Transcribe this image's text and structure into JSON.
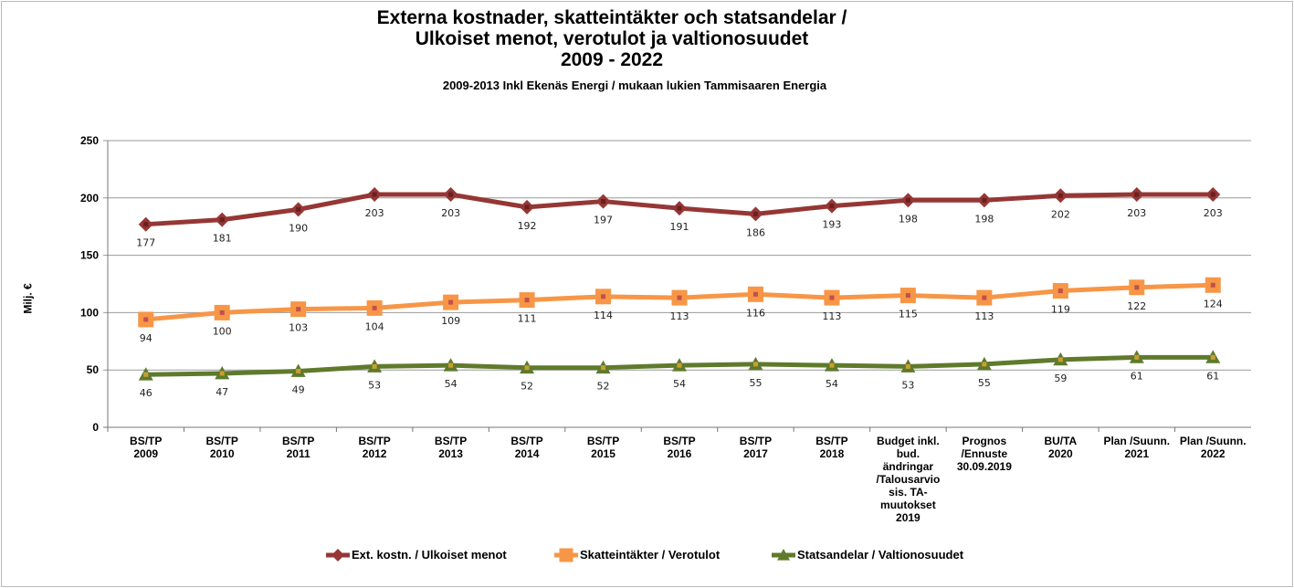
{
  "chart_data": {
    "type": "line",
    "title": "Externa kostnader, skatteintäkter och statsandelar /\nUlkoiset menot, verotulot ja valtionosuudet\n2009 - 2022",
    "subtitle": "2009-2013  Inkl Ekenäs Energi / mukaan lukien Tammisaaren Energia",
    "y_label": "Milj. €",
    "categories": [
      "BS/TP\n2009",
      "BS/TP\n2010",
      "BS/TP\n2011",
      "BS/TP\n2012",
      "BS/TP\n2013",
      "BS/TP\n2014",
      "BS/TP\n2015",
      "BS/TP\n2016",
      "BS/TP\n2017",
      "BS/TP\n2018",
      "Budget inkl.\nbud.\nändringar\n/Talousarvio\nsis. TA-\nmuutokset\n2019",
      "Prognos\n/Ennuste\n30.09.2019",
      "BU/TA\n2020",
      "Plan /Suunn.\n2021",
      "Plan /Suunn.\n2022"
    ],
    "series": [
      {
        "name": "Ext. kostn. / Ulkoiset menot",
        "color": "#953735",
        "marker": "diamond",
        "values": [
          177,
          181,
          190,
          203,
          203,
          192,
          197,
          191,
          186,
          193,
          198,
          198,
          202,
          203,
          203
        ]
      },
      {
        "name": "Skatteintäkter / Verotulot",
        "color": "#f79646",
        "marker": "square",
        "values": [
          94,
          100,
          103,
          104,
          109,
          111,
          114,
          113,
          116,
          113,
          115,
          113,
          119,
          122,
          124
        ]
      },
      {
        "name": "Statsandelar / Valtionosuudet",
        "color": "#5f7a2c",
        "marker": "triangle",
        "values": [
          46,
          47,
          49,
          53,
          54,
          52,
          52,
          54,
          55,
          54,
          53,
          55,
          59,
          61,
          61
        ]
      }
    ],
    "ylim": [
      0,
      250
    ],
    "yticks": [
      0,
      50,
      100,
      150,
      200,
      250
    ],
    "grid": true,
    "legend": "bottom"
  }
}
